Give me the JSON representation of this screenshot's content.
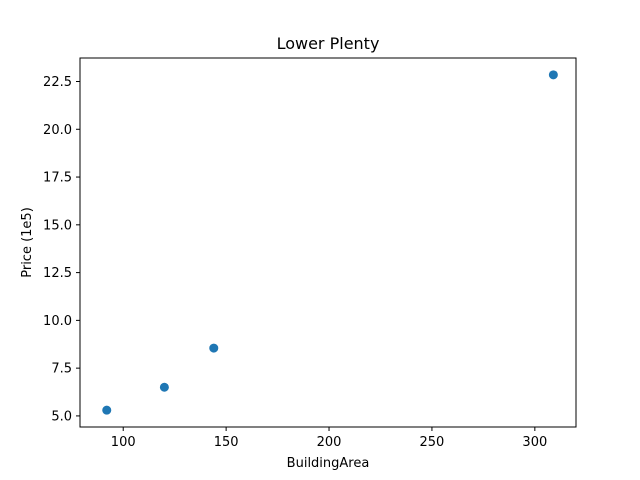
{
  "chart_data": {
    "type": "scatter",
    "title": "Lower Plenty",
    "xlabel": "BuildingArea",
    "ylabel": "Price (1e5)",
    "xlim": [
      79,
      320
    ],
    "ylim": [
      4.42,
      23.73
    ],
    "xticks": [
      100,
      150,
      200,
      250,
      300
    ],
    "yticks": [
      5.0,
      7.5,
      10.0,
      12.5,
      15.0,
      17.5,
      20.0,
      22.5
    ],
    "xtick_labels": [
      "100",
      "150",
      "200",
      "250",
      "300"
    ],
    "ytick_labels": [
      "5.0",
      "7.5",
      "10.0",
      "12.5",
      "15.0",
      "17.5",
      "20.0",
      "22.5"
    ],
    "grid": false,
    "series": [
      {
        "color": "#1f77b4",
        "points": [
          {
            "x": 92,
            "y": 5.3
          },
          {
            "x": 120,
            "y": 6.5
          },
          {
            "x": 144,
            "y": 8.55
          },
          {
            "x": 309,
            "y": 22.85
          }
        ]
      }
    ]
  }
}
